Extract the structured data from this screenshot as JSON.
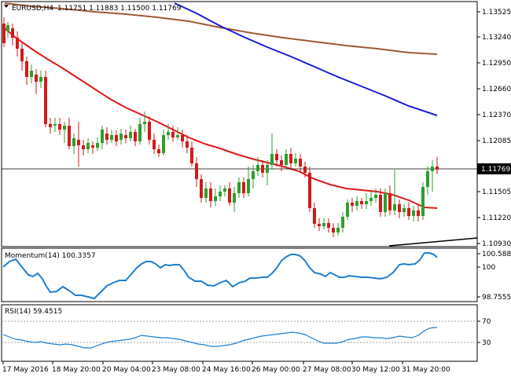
{
  "header": {
    "symbol": "EURUSD,H4",
    "ohlc": "1.11751 1.11883 1.11500 1.11769"
  },
  "price_axis": {
    "ticks": [
      "1.13525",
      "1.13240",
      "1.12950",
      "1.12660",
      "1.12370",
      "1.12085",
      "1.11505",
      "1.11220",
      "1.10930"
    ],
    "current_price": "1.11769"
  },
  "momentum": {
    "title": "Momentum(14) 100.3357",
    "ticks": [
      "100.5888",
      "100",
      "98.7555"
    ]
  },
  "rsi": {
    "title": "RSI(14) 59.4515",
    "ticks": [
      "70",
      "30"
    ]
  },
  "time_axis": {
    "labels": [
      "17 May 2016",
      "18 May 20:00",
      "20 May 04:00",
      "23 May 08:00",
      "24 May 16:00",
      "26 May 00:00",
      "27 May 08:00",
      "30 May 12:00",
      "31 May 20:00"
    ]
  },
  "colors": {
    "bull": "#2e9e2e",
    "bear": "#d11a1a",
    "ma_fast": "#e01818",
    "ma_mid": "#1a1ad9",
    "ma_slow": "#9c5a35",
    "indicator": "#1e7fd0",
    "trendline": "#000000"
  }
}
